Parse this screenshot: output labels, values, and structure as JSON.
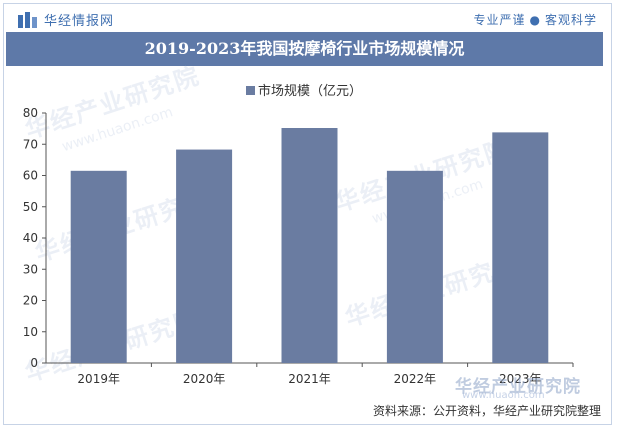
{
  "header": {
    "brand": "华经情报网",
    "slogan_left": "专业严谨",
    "slogan_separator": "●",
    "slogan_right": "客观科学"
  },
  "chart_data": {
    "type": "bar",
    "title": "2019-2023年我国按摩椅行业市场规模情况",
    "categories": [
      "2019年",
      "2020年",
      "2021年",
      "2022年",
      "2023年"
    ],
    "series": [
      {
        "name": "市场规模（亿元）",
        "values": [
          61.5,
          68.3,
          75.2,
          61.5,
          73.8
        ]
      }
    ],
    "ylim": [
      0,
      80
    ],
    "yticks": [
      0,
      10,
      20,
      30,
      40,
      50,
      60,
      70,
      80
    ],
    "xlabel": "",
    "ylabel": "",
    "legend_position": "top-center",
    "grid": false,
    "bar_color": "#6a7ca1"
  },
  "watermark": {
    "text": "华经产业研究院",
    "url": "www.huaon.com"
  },
  "footer": {
    "source": "资料来源：公开资料，华经产业研究院整理"
  }
}
